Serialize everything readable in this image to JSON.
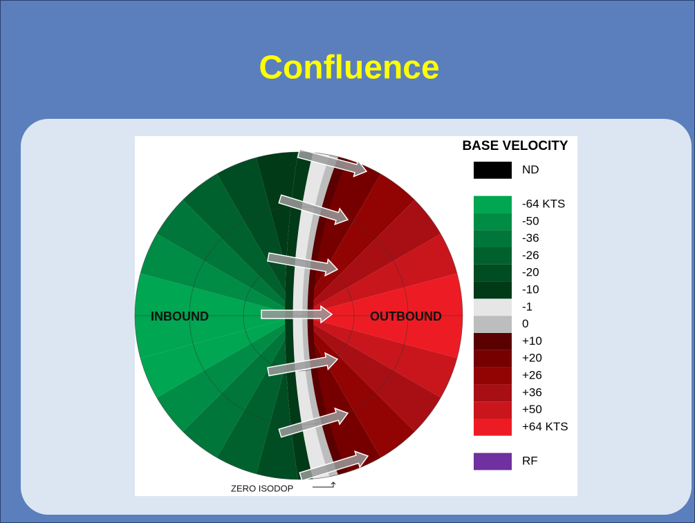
{
  "title": "Confluence",
  "diagram": {
    "inbound_label": "INBOUND",
    "outbound_label": "OUTBOUND",
    "zero_label": "ZERO ISODOP"
  },
  "legend": {
    "title": "BASE VELOCITY",
    "items": [
      {
        "color": "#000000",
        "label": "ND"
      },
      {
        "color": "#ffffff"
      },
      {
        "color": "#00a651",
        "label": "-64 KTS"
      },
      {
        "color": "#008c45",
        "label": "-50"
      },
      {
        "color": "#00763a",
        "label": "-36"
      },
      {
        "color": "#00612e",
        "label": "-26"
      },
      {
        "color": "#004d23",
        "label": "-20"
      },
      {
        "color": "#003a17",
        "label": "-10"
      },
      {
        "color": "#e6e6e6",
        "label": "-1"
      },
      {
        "color": "#bdbdbd",
        "label": "0"
      },
      {
        "color": "#5a0000",
        "label": "+10"
      },
      {
        "color": "#760000",
        "label": "+20"
      },
      {
        "color": "#920404",
        "label": "+26"
      },
      {
        "color": "#a80f14",
        "label": "+36"
      },
      {
        "color": "#c8161c",
        "label": "+50"
      },
      {
        "color": "#ed1c24",
        "label": "+64 KTS"
      },
      {
        "color": "#ffffff"
      },
      {
        "color": "#7030a0",
        "label": "RF"
      }
    ]
  }
}
